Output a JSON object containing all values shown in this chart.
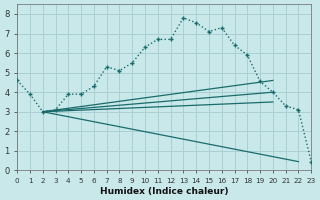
{
  "xlabel": "Humidex (Indice chaleur)",
  "xlim": [
    0,
    23
  ],
  "ylim": [
    0,
    8.5
  ],
  "bg_color": "#c8e8ea",
  "grid_color": "#aad0d4",
  "line_color": "#1a6b6b",
  "main_line_x": [
    0,
    1,
    2,
    3,
    4,
    5,
    6,
    7,
    8,
    9,
    10,
    11,
    12,
    13,
    14,
    15,
    16,
    17,
    18,
    19,
    20,
    21,
    22,
    23
  ],
  "main_line_y": [
    4.6,
    3.9,
    3.0,
    3.1,
    3.9,
    3.9,
    4.3,
    5.3,
    5.1,
    5.5,
    6.3,
    6.7,
    6.7,
    7.8,
    7.55,
    7.1,
    7.3,
    6.4,
    5.9,
    4.55,
    4.0,
    3.3,
    3.1,
    0.45
  ],
  "trend_lines": [
    {
      "x": [
        2,
        20
      ],
      "y": [
        3.0,
        4.6
      ]
    },
    {
      "x": [
        2,
        20
      ],
      "y": [
        3.0,
        4.0
      ]
    },
    {
      "x": [
        2,
        20
      ],
      "y": [
        3.0,
        3.5
      ]
    },
    {
      "x": [
        2,
        22
      ],
      "y": [
        3.0,
        0.45
      ]
    }
  ],
  "xticks": [
    0,
    1,
    2,
    3,
    4,
    5,
    6,
    7,
    8,
    9,
    10,
    11,
    12,
    13,
    14,
    15,
    16,
    17,
    18,
    19,
    20,
    21,
    22,
    23
  ],
  "yticks": [
    0,
    1,
    2,
    3,
    4,
    5,
    6,
    7,
    8
  ],
  "xlabel_fontsize": 6.5,
  "tick_fontsize_x": 5.2,
  "tick_fontsize_y": 6.0
}
